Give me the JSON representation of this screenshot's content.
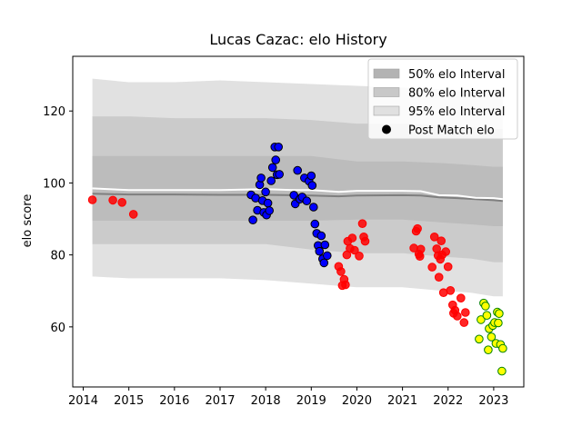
{
  "chart_data": {
    "type": "scatter",
    "title": "Lucas Cazac: elo History",
    "xlabel": "",
    "ylabel": "elo score",
    "xlim": [
      2013.77,
      2023.66
    ],
    "ylim": [
      43.3,
      135.2
    ],
    "xticks": [
      "2014",
      "2015",
      "2016",
      "2017",
      "2018",
      "2019",
      "2020",
      "2021",
      "2022",
      "2023"
    ],
    "yticks": [
      60,
      80,
      100,
      120
    ],
    "grid": false,
    "legend_position": "top-right",
    "legend": [
      {
        "label": "50% elo Interval",
        "kind": "band",
        "color": "#b3b3b3"
      },
      {
        "label": "80% elo Interval",
        "kind": "band",
        "color": "#c8c8c8"
      },
      {
        "label": "95% elo Interval",
        "kind": "band",
        "color": "#e0e0e0"
      },
      {
        "label": "Post Match elo",
        "kind": "marker",
        "color": "#000000"
      }
    ],
    "bands": {
      "x": [
        2014.2,
        2015.0,
        2016.0,
        2017.0,
        2018.0,
        2019.0,
        2020.0,
        2021.0,
        2021.9,
        2022.5,
        2023.0,
        2023.2
      ],
      "p50_low": [
        89.5,
        89.5,
        89.5,
        89.5,
        89.5,
        89.5,
        89.8,
        89.8,
        89.0,
        88.5,
        88.0,
        88.0
      ],
      "p50_high": [
        107.5,
        107.5,
        107.5,
        107.5,
        107.5,
        107.5,
        106.0,
        106.0,
        105.5,
        105.0,
        104.5,
        104.5
      ],
      "p80_low": [
        83.0,
        83.0,
        83.0,
        83.0,
        83.0,
        81.5,
        80.5,
        80.5,
        79.5,
        79.0,
        78.0,
        78.0
      ],
      "p80_high": [
        118.5,
        118.5,
        118.0,
        118.0,
        118.0,
        117.5,
        116.5,
        116.5,
        116.0,
        115.5,
        115.0,
        115.0
      ],
      "p95_low": [
        74.0,
        73.5,
        73.5,
        73.5,
        73.0,
        72.0,
        71.0,
        71.0,
        70.0,
        69.5,
        68.5,
        68.5
      ],
      "p95_high": [
        129.0,
        128.0,
        128.0,
        128.5,
        128.0,
        127.5,
        127.0,
        126.5,
        126.0,
        125.5,
        125.0,
        125.0
      ]
    },
    "mean_line": {
      "x": [
        2014.2,
        2015.0,
        2016.0,
        2017.0,
        2018.0,
        2018.6,
        2019.0,
        2019.6,
        2020.0,
        2021.0,
        2021.4,
        2021.8,
        2022.2,
        2022.6,
        2023.0,
        2023.2
      ],
      "y": [
        97.0,
        96.8,
        96.8,
        96.7,
        96.7,
        96.6,
        96.5,
        96.3,
        96.5,
        96.6,
        96.5,
        96.0,
        95.8,
        95.5,
        95.2,
        95.0
      ]
    },
    "median_line": {
      "x": [
        2014.2,
        2015.0,
        2016.0,
        2017.0,
        2018.0,
        2018.6,
        2019.0,
        2019.6,
        2020.0,
        2021.0,
        2021.4,
        2021.8,
        2022.2,
        2022.6,
        2023.0,
        2023.2
      ],
      "y": [
        98.5,
        98.0,
        98.0,
        98.0,
        98.3,
        98.0,
        98.0,
        97.5,
        97.8,
        97.8,
        97.7,
        96.6,
        96.5,
        95.9,
        95.8,
        95.5
      ]
    },
    "series": [
      {
        "color": "#ff0000",
        "edgecolor": "#ff0000",
        "points": [
          [
            2014.2,
            95.3
          ],
          [
            2014.65,
            95.2
          ],
          [
            2014.85,
            94.6
          ],
          [
            2015.1,
            91.3
          ],
          [
            2019.6,
            76.8
          ],
          [
            2019.65,
            75.4
          ],
          [
            2019.68,
            71.5
          ],
          [
            2019.72,
            73.2
          ],
          [
            2019.75,
            71.7
          ],
          [
            2019.78,
            80.0
          ],
          [
            2019.8,
            83.8
          ],
          [
            2019.85,
            81.8
          ],
          [
            2019.9,
            84.7
          ],
          [
            2019.95,
            81.3
          ],
          [
            2020.05,
            79.7
          ],
          [
            2020.12,
            88.7
          ],
          [
            2020.15,
            85.0
          ],
          [
            2020.18,
            83.8
          ],
          [
            2021.25,
            81.9
          ],
          [
            2021.3,
            86.6
          ],
          [
            2021.33,
            87.3
          ],
          [
            2021.36,
            80.2
          ],
          [
            2021.38,
            79.6
          ],
          [
            2021.4,
            81.6
          ],
          [
            2021.65,
            76.6
          ],
          [
            2021.7,
            85.0
          ],
          [
            2021.75,
            81.7
          ],
          [
            2021.78,
            79.8
          ],
          [
            2021.8,
            73.8
          ],
          [
            2021.83,
            78.8
          ],
          [
            2021.85,
            83.9
          ],
          [
            2021.87,
            80.0
          ],
          [
            2021.9,
            69.5
          ],
          [
            2021.95,
            80.9
          ],
          [
            2022.0,
            76.7
          ],
          [
            2022.05,
            70.1
          ],
          [
            2022.1,
            66.1
          ],
          [
            2022.12,
            63.8
          ],
          [
            2022.15,
            64.6
          ],
          [
            2022.2,
            63.0
          ],
          [
            2022.28,
            68.0
          ],
          [
            2022.35,
            61.2
          ],
          [
            2022.38,
            64.0
          ]
        ]
      },
      {
        "color": "#0000ff",
        "edgecolor": "#000000",
        "points": [
          [
            2017.68,
            96.7
          ],
          [
            2017.72,
            89.7
          ],
          [
            2017.78,
            95.8
          ],
          [
            2017.82,
            92.4
          ],
          [
            2017.87,
            99.5
          ],
          [
            2017.9,
            101.4
          ],
          [
            2017.93,
            95.1
          ],
          [
            2017.96,
            91.8
          ],
          [
            2018.0,
            97.5
          ],
          [
            2018.02,
            91.1
          ],
          [
            2018.05,
            94.4
          ],
          [
            2018.08,
            92.3
          ],
          [
            2018.12,
            100.6
          ],
          [
            2018.15,
            104.3
          ],
          [
            2018.2,
            110.0
          ],
          [
            2018.22,
            106.4
          ],
          [
            2018.25,
            102.3
          ],
          [
            2018.28,
            110.0
          ],
          [
            2018.3,
            102.4
          ],
          [
            2018.62,
            96.6
          ],
          [
            2018.65,
            94.2
          ],
          [
            2018.7,
            103.5
          ],
          [
            2018.75,
            95.5
          ],
          [
            2018.8,
            96.1
          ],
          [
            2018.85,
            101.4
          ],
          [
            2018.9,
            95.0
          ],
          [
            2018.95,
            100.5
          ],
          [
            2019.0,
            102.0
          ],
          [
            2019.02,
            99.3
          ],
          [
            2019.05,
            93.3
          ],
          [
            2019.08,
            88.6
          ],
          [
            2019.12,
            86.0
          ],
          [
            2019.15,
            82.6
          ],
          [
            2019.18,
            81.0
          ],
          [
            2019.22,
            85.3
          ],
          [
            2019.25,
            78.9
          ],
          [
            2019.28,
            77.8
          ],
          [
            2019.3,
            82.8
          ],
          [
            2019.35,
            79.8
          ]
        ]
      },
      {
        "color": "#ffff00",
        "edgecolor": "#008000",
        "points": [
          [
            2022.68,
            56.6
          ],
          [
            2022.72,
            62.0
          ],
          [
            2022.78,
            66.6
          ],
          [
            2022.82,
            65.8
          ],
          [
            2022.85,
            63.2
          ],
          [
            2022.88,
            53.6
          ],
          [
            2022.9,
            59.5
          ],
          [
            2022.95,
            57.2
          ],
          [
            2022.98,
            60.4
          ],
          [
            2023.02,
            61.2
          ],
          [
            2023.05,
            55.4
          ],
          [
            2023.08,
            64.1
          ],
          [
            2023.1,
            61.1
          ],
          [
            2023.12,
            63.7
          ],
          [
            2023.15,
            55.1
          ],
          [
            2023.18,
            47.7
          ],
          [
            2023.2,
            54.0
          ]
        ]
      }
    ]
  }
}
